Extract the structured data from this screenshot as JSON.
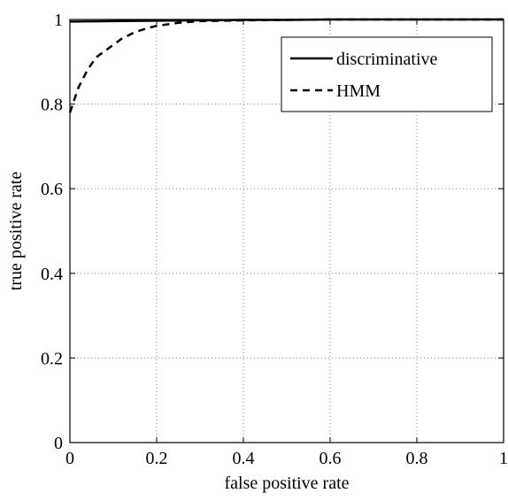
{
  "chart_data": {
    "type": "line",
    "title": "",
    "xlabel": "false positive rate",
    "ylabel": "true positive rate",
    "xlim": [
      0,
      1
    ],
    "ylim": [
      0,
      1
    ],
    "xticks": [
      "0",
      "0.2",
      "0.4",
      "0.6",
      "0.8",
      "1"
    ],
    "yticks": [
      "0",
      "0.2",
      "0.4",
      "0.6",
      "0.8",
      "1"
    ],
    "grid": true,
    "legend_position": "top-right",
    "series": [
      {
        "name": "discriminative",
        "style": "solid",
        "color": "#000000",
        "x": [
          0,
          0.1,
          0.2,
          0.3,
          0.4,
          0.5,
          0.6,
          0.7,
          0.8,
          0.9,
          1.0
        ],
        "y": [
          0.995,
          0.996,
          0.997,
          0.998,
          0.999,
          0.999,
          1.0,
          1.0,
          1.0,
          1.0,
          1.0
        ]
      },
      {
        "name": "HMM",
        "style": "dashed",
        "color": "#000000",
        "x": [
          0,
          0.01,
          0.02,
          0.04,
          0.06,
          0.08,
          0.1,
          0.12,
          0.15,
          0.18,
          0.2,
          0.25,
          0.3,
          0.4,
          0.5,
          0.6,
          0.8,
          1.0
        ],
        "y": [
          0.78,
          0.81,
          0.84,
          0.88,
          0.91,
          0.925,
          0.94,
          0.955,
          0.97,
          0.98,
          0.985,
          0.992,
          0.996,
          0.998,
          0.999,
          1.0,
          1.0,
          1.0
        ]
      }
    ]
  }
}
